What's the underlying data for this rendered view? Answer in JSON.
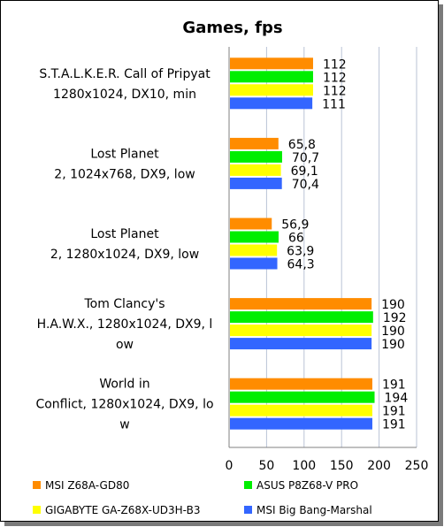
{
  "chart_data": {
    "type": "bar",
    "orientation": "horizontal",
    "title": "Games, fps",
    "xlim": [
      0,
      250
    ],
    "xticks": [
      0,
      50,
      100,
      150,
      200,
      250
    ],
    "grid": true,
    "legend_position": "bottom",
    "categories": [
      {
        "lines": [
          "S.T.A.L.K.E.R. Call of Pripyat",
          "1280x1024, DX10, min"
        ]
      },
      {
        "lines": [
          "Lost Planet",
          "2, 1024x768, DX9, low"
        ]
      },
      {
        "lines": [
          "Lost Planet",
          "2, 1280x1024, DX9, low"
        ]
      },
      {
        "lines": [
          "Tom Clancy's",
          "H.A.W.X., 1280x1024, DX9, l",
          "ow"
        ]
      },
      {
        "lines": [
          "World in",
          "Conflict, 1280x1024, DX9, lo",
          "w"
        ]
      }
    ],
    "series": [
      {
        "name": "MSI Z68A-GD80",
        "color": "#ff8c00",
        "values": [
          112,
          65.8,
          56.9,
          190,
          191
        ],
        "labels": [
          "112",
          "65,8",
          "56,9",
          "190",
          "191"
        ]
      },
      {
        "name": "ASUS P8Z68-V PRO",
        "color": "#00ee00",
        "values": [
          112,
          70.7,
          66,
          192,
          194
        ],
        "labels": [
          "112",
          "70,7",
          "66",
          "192",
          "194"
        ]
      },
      {
        "name": "GIGABYTE GA-Z68X-UD3H-B3",
        "color": "#ffff00",
        "values": [
          112,
          69.1,
          63.9,
          190,
          191
        ],
        "labels": [
          "112",
          "69,1",
          "63,9",
          "190",
          "191"
        ]
      },
      {
        "name": "MSI Big Bang-Marshal",
        "color": "#3366ff",
        "values": [
          111,
          70.4,
          64.3,
          190,
          191
        ],
        "labels": [
          "111",
          "70,4",
          "64,3",
          "190",
          "191"
        ]
      }
    ]
  }
}
